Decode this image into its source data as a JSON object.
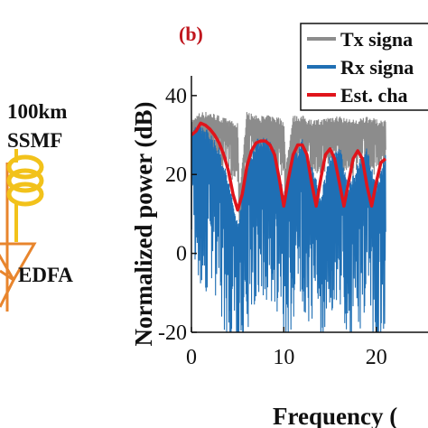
{
  "left_panel": {
    "fiber_label_line1": "100km",
    "fiber_label_line2": "SSMF",
    "amp_label": "EDFA",
    "colors": {
      "fiber": "#f2c21b",
      "amplifier": "#e8852d",
      "link": "#e8852d"
    }
  },
  "chart_data": {
    "type": "line",
    "panel_label": "(b)",
    "title": "",
    "xlabel": "Frequency (",
    "ylabel": "Normalized power (dB)",
    "xlim": [
      0,
      25.6
    ],
    "ylim": [
      -20,
      45
    ],
    "xticks": [
      "0",
      "10",
      "20"
    ],
    "yticks": [
      "-20",
      "0",
      "20",
      "40"
    ],
    "grid": false,
    "legend": {
      "placement": "top-right",
      "entries": [
        "Tx signa",
        "Rx signa",
        "Est. cha"
      ]
    },
    "series": [
      {
        "name": "Tx signa",
        "color": "#8c8c8c",
        "x": [
          0,
          1,
          2,
          3,
          4,
          5,
          5.2,
          6,
          7,
          8,
          9,
          10,
          10.2,
          11,
          12,
          13,
          14,
          15,
          16,
          17,
          18,
          19,
          20,
          21
        ],
        "y": [
          32,
          34,
          34,
          33,
          32,
          31,
          14,
          34,
          33,
          33,
          33,
          32,
          20,
          33,
          33,
          32,
          32,
          33,
          33,
          32,
          32,
          33,
          32,
          32
        ]
      },
      {
        "name": "Rx signa",
        "color": "#1f6fb4",
        "x": [
          0,
          1,
          2,
          3,
          4,
          5,
          6,
          7,
          8,
          9,
          10,
          11,
          12,
          13,
          14,
          15,
          16,
          17,
          18,
          19,
          20,
          21
        ],
        "y": [
          29,
          30,
          28,
          24,
          16,
          5,
          20,
          26,
          27,
          24,
          12,
          22,
          26,
          20,
          12,
          22,
          25,
          14,
          20,
          24,
          14,
          22
        ]
      },
      {
        "name": "Est. cha",
        "color": "#e0141b",
        "x": [
          0,
          0.5,
          1,
          1.5,
          2,
          2.5,
          3,
          3.5,
          4,
          4.5,
          5,
          5.5,
          6,
          6.5,
          7,
          7.5,
          8,
          8.5,
          9,
          9.5,
          10,
          10.5,
          11,
          11.5,
          12,
          12.5,
          13,
          13.5,
          14,
          14.5,
          15,
          15.5,
          16,
          16.5,
          17,
          17.5,
          18,
          18.5,
          19,
          19.5,
          20,
          20.5,
          21
        ],
        "y": [
          30,
          31,
          33,
          32.5,
          31.5,
          30,
          28,
          25,
          21,
          15,
          11,
          15,
          22,
          26,
          28,
          28.5,
          28.5,
          27.5,
          25,
          19,
          12,
          19,
          25,
          27.5,
          27.5,
          25,
          18,
          12,
          19,
          25,
          26.5,
          24,
          18,
          12,
          18,
          24,
          26,
          24,
          17,
          12,
          18,
          23,
          24
        ]
      }
    ]
  }
}
